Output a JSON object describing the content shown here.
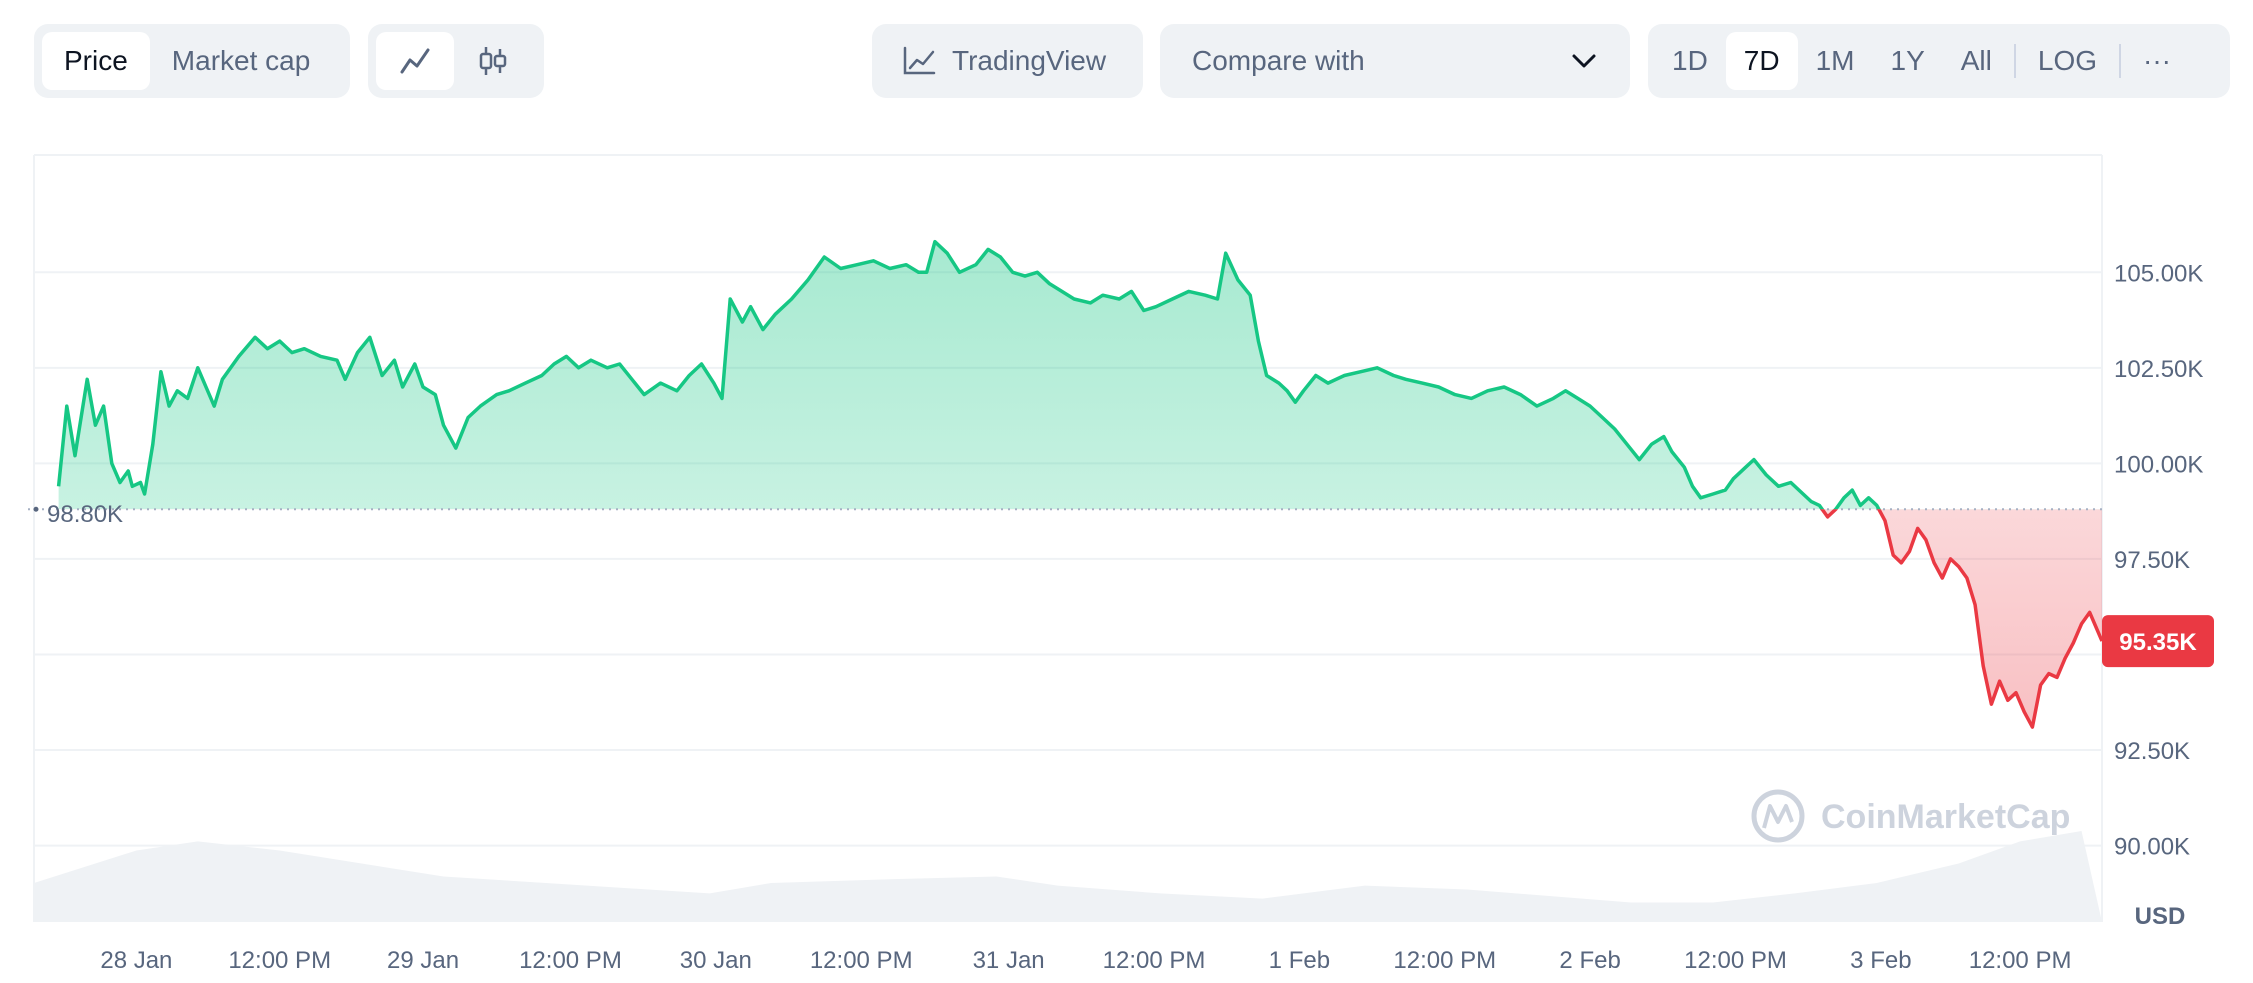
{
  "toolbar": {
    "metric_tabs": [
      {
        "label": "Price",
        "active": true
      },
      {
        "label": "Market cap",
        "active": false
      }
    ],
    "chart_style": {
      "line_icon": "line-chart-icon",
      "candle_icon": "candlestick-icon",
      "active": "line"
    },
    "tradingview": {
      "label": "TradingView",
      "icon": "trend-chart-icon"
    },
    "compare": {
      "label": "Compare with",
      "icon": "chevron-down-icon"
    },
    "ranges": [
      {
        "label": "1D",
        "active": false
      },
      {
        "label": "7D",
        "active": true
      },
      {
        "label": "1M",
        "active": false
      },
      {
        "label": "1Y",
        "active": false
      },
      {
        "label": "All",
        "active": false
      }
    ],
    "log_label": "LOG",
    "more_label": "···"
  },
  "chart_data": {
    "type": "area",
    "currency": "USD",
    "watermark": "CoinMarketCap",
    "reference_value": 98800,
    "reference_label": "98.80K",
    "current_value": 95350,
    "current_label": "95.35K",
    "y_ticks": [
      {
        "value": 105000,
        "label": "105.00K"
      },
      {
        "value": 102500,
        "label": "102.50K"
      },
      {
        "value": 100000,
        "label": "100.00K"
      },
      {
        "value": 97500,
        "label": "97.50K"
      },
      {
        "value": 92500,
        "label": "92.50K"
      },
      {
        "value": 90000,
        "label": "90.00K"
      }
    ],
    "ylim": [
      88000,
      108200
    ],
    "x_ticks": [
      {
        "t": 0.05,
        "label": "28 Jan"
      },
      {
        "t": 0.12,
        "label": "12:00 PM"
      },
      {
        "t": 0.19,
        "label": "29 Jan"
      },
      {
        "t": 0.262,
        "label": "12:00 PM"
      },
      {
        "t": 0.333,
        "label": "30 Jan"
      },
      {
        "t": 0.404,
        "label": "12:00 PM"
      },
      {
        "t": 0.476,
        "label": "31 Jan"
      },
      {
        "t": 0.547,
        "label": "12:00 PM"
      },
      {
        "t": 0.618,
        "label": "1 Feb"
      },
      {
        "t": 0.689,
        "label": "12:00 PM"
      },
      {
        "t": 0.76,
        "label": "2 Feb"
      },
      {
        "t": 0.831,
        "label": "12:00 PM"
      },
      {
        "t": 0.902,
        "label": "3 Feb"
      },
      {
        "t": 0.97,
        "label": "12:00 PM"
      }
    ],
    "up_color": "#16c784",
    "down_color": "#ea3943",
    "price_series": [
      [
        0.012,
        99400
      ],
      [
        0.016,
        101500
      ],
      [
        0.02,
        100200
      ],
      [
        0.026,
        102200
      ],
      [
        0.03,
        101000
      ],
      [
        0.034,
        101500
      ],
      [
        0.038,
        100000
      ],
      [
        0.042,
        99500
      ],
      [
        0.046,
        99800
      ],
      [
        0.048,
        99400
      ],
      [
        0.052,
        99500
      ],
      [
        0.054,
        99200
      ],
      [
        0.058,
        100500
      ],
      [
        0.062,
        102400
      ],
      [
        0.066,
        101500
      ],
      [
        0.07,
        101900
      ],
      [
        0.075,
        101700
      ],
      [
        0.08,
        102500
      ],
      [
        0.084,
        102000
      ],
      [
        0.088,
        101500
      ],
      [
        0.092,
        102200
      ],
      [
        0.1,
        102800
      ],
      [
        0.108,
        103300
      ],
      [
        0.114,
        103000
      ],
      [
        0.12,
        103200
      ],
      [
        0.126,
        102900
      ],
      [
        0.132,
        103000
      ],
      [
        0.14,
        102800
      ],
      [
        0.148,
        102700
      ],
      [
        0.152,
        102200
      ],
      [
        0.158,
        102900
      ],
      [
        0.164,
        103300
      ],
      [
        0.17,
        102300
      ],
      [
        0.176,
        102700
      ],
      [
        0.18,
        102000
      ],
      [
        0.186,
        102600
      ],
      [
        0.19,
        102000
      ],
      [
        0.196,
        101800
      ],
      [
        0.2,
        101000
      ],
      [
        0.206,
        100400
      ],
      [
        0.212,
        101200
      ],
      [
        0.218,
        101500
      ],
      [
        0.226,
        101800
      ],
      [
        0.232,
        101900
      ],
      [
        0.24,
        102100
      ],
      [
        0.248,
        102300
      ],
      [
        0.254,
        102600
      ],
      [
        0.26,
        102800
      ],
      [
        0.266,
        102500
      ],
      [
        0.272,
        102700
      ],
      [
        0.28,
        102500
      ],
      [
        0.286,
        102600
      ],
      [
        0.292,
        102200
      ],
      [
        0.298,
        101800
      ],
      [
        0.306,
        102100
      ],
      [
        0.314,
        101900
      ],
      [
        0.32,
        102300
      ],
      [
        0.326,
        102600
      ],
      [
        0.332,
        102100
      ],
      [
        0.336,
        101700
      ],
      [
        0.34,
        104300
      ],
      [
        0.346,
        103700
      ],
      [
        0.35,
        104100
      ],
      [
        0.356,
        103500
      ],
      [
        0.362,
        103900
      ],
      [
        0.37,
        104300
      ],
      [
        0.378,
        104800
      ],
      [
        0.386,
        105400
      ],
      [
        0.394,
        105100
      ],
      [
        0.402,
        105200
      ],
      [
        0.41,
        105300
      ],
      [
        0.418,
        105100
      ],
      [
        0.426,
        105200
      ],
      [
        0.432,
        105000
      ],
      [
        0.436,
        105000
      ],
      [
        0.44,
        105800
      ],
      [
        0.446,
        105500
      ],
      [
        0.452,
        105000
      ],
      [
        0.46,
        105200
      ],
      [
        0.466,
        105600
      ],
      [
        0.472,
        105400
      ],
      [
        0.478,
        105000
      ],
      [
        0.484,
        104900
      ],
      [
        0.49,
        105000
      ],
      [
        0.496,
        104700
      ],
      [
        0.502,
        104500
      ],
      [
        0.508,
        104300
      ],
      [
        0.516,
        104200
      ],
      [
        0.522,
        104400
      ],
      [
        0.53,
        104300
      ],
      [
        0.536,
        104500
      ],
      [
        0.542,
        104000
      ],
      [
        0.548,
        104100
      ],
      [
        0.556,
        104300
      ],
      [
        0.564,
        104500
      ],
      [
        0.572,
        104400
      ],
      [
        0.578,
        104300
      ],
      [
        0.582,
        105500
      ],
      [
        0.588,
        104800
      ],
      [
        0.594,
        104400
      ],
      [
        0.598,
        103200
      ],
      [
        0.602,
        102300
      ],
      [
        0.608,
        102100
      ],
      [
        0.612,
        101900
      ],
      [
        0.616,
        101600
      ],
      [
        0.62,
        101900
      ],
      [
        0.626,
        102300
      ],
      [
        0.632,
        102100
      ],
      [
        0.64,
        102300
      ],
      [
        0.648,
        102400
      ],
      [
        0.656,
        102500
      ],
      [
        0.664,
        102300
      ],
      [
        0.67,
        102200
      ],
      [
        0.678,
        102100
      ],
      [
        0.686,
        102000
      ],
      [
        0.694,
        101800
      ],
      [
        0.702,
        101700
      ],
      [
        0.71,
        101900
      ],
      [
        0.718,
        102000
      ],
      [
        0.726,
        101800
      ],
      [
        0.734,
        101500
      ],
      [
        0.742,
        101700
      ],
      [
        0.748,
        101900
      ],
      [
        0.754,
        101700
      ],
      [
        0.76,
        101500
      ],
      [
        0.766,
        101200
      ],
      [
        0.772,
        100900
      ],
      [
        0.778,
        100500
      ],
      [
        0.784,
        100100
      ],
      [
        0.79,
        100500
      ],
      [
        0.796,
        100700
      ],
      [
        0.8,
        100300
      ],
      [
        0.806,
        99900
      ],
      [
        0.81,
        99400
      ],
      [
        0.814,
        99100
      ],
      [
        0.82,
        99200
      ],
      [
        0.826,
        99300
      ],
      [
        0.83,
        99600
      ],
      [
        0.836,
        99900
      ],
      [
        0.84,
        100100
      ],
      [
        0.846,
        99700
      ],
      [
        0.852,
        99400
      ],
      [
        0.858,
        99500
      ],
      [
        0.864,
        99200
      ],
      [
        0.868,
        99000
      ],
      [
        0.872,
        98900
      ],
      [
        0.876,
        98600
      ],
      [
        0.88,
        98800
      ],
      [
        0.884,
        99100
      ],
      [
        0.888,
        99300
      ],
      [
        0.892,
        98900
      ],
      [
        0.896,
        99100
      ],
      [
        0.9,
        98900
      ],
      [
        0.904,
        98500
      ],
      [
        0.908,
        97600
      ],
      [
        0.912,
        97400
      ],
      [
        0.916,
        97700
      ],
      [
        0.92,
        98300
      ],
      [
        0.924,
        98000
      ],
      [
        0.928,
        97400
      ],
      [
        0.932,
        97000
      ],
      [
        0.936,
        97500
      ],
      [
        0.94,
        97300
      ],
      [
        0.944,
        97000
      ],
      [
        0.948,
        96300
      ],
      [
        0.952,
        94700
      ],
      [
        0.956,
        93700
      ],
      [
        0.96,
        94300
      ],
      [
        0.964,
        93800
      ],
      [
        0.968,
        94000
      ],
      [
        0.972,
        93500
      ],
      [
        0.976,
        93100
      ],
      [
        0.98,
        94200
      ],
      [
        0.984,
        94500
      ],
      [
        0.988,
        94400
      ],
      [
        0.992,
        94900
      ],
      [
        0.996,
        95300
      ],
      [
        1.0,
        95800
      ],
      [
        1.004,
        96100
      ],
      [
        1.01,
        95350
      ]
    ],
    "volume_series": [
      [
        0.0,
        0.3
      ],
      [
        0.05,
        0.55
      ],
      [
        0.08,
        0.62
      ],
      [
        0.12,
        0.55
      ],
      [
        0.16,
        0.45
      ],
      [
        0.2,
        0.35
      ],
      [
        0.25,
        0.3
      ],
      [
        0.3,
        0.25
      ],
      [
        0.33,
        0.22
      ],
      [
        0.36,
        0.3
      ],
      [
        0.42,
        0.33
      ],
      [
        0.47,
        0.35
      ],
      [
        0.5,
        0.28
      ],
      [
        0.55,
        0.22
      ],
      [
        0.6,
        0.18
      ],
      [
        0.65,
        0.28
      ],
      [
        0.7,
        0.25
      ],
      [
        0.74,
        0.2
      ],
      [
        0.78,
        0.15
      ],
      [
        0.82,
        0.15
      ],
      [
        0.86,
        0.22
      ],
      [
        0.9,
        0.3
      ],
      [
        0.94,
        0.45
      ],
      [
        0.97,
        0.62
      ],
      [
        1.0,
        0.7
      ]
    ]
  }
}
